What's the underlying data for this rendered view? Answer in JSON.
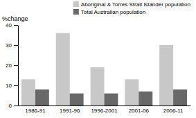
{
  "chart_data": {
    "type": "bar",
    "ylabel": "%change",
    "categories": [
      "1986-91",
      "1991-96",
      "1996-2001",
      "2001-06",
      "2006-11"
    ],
    "series": [
      {
        "name": "Aboriginal & Torres Strait Islander population",
        "color": "#c8c8c8",
        "values": [
          13,
          36,
          19,
          13,
          30
        ]
      },
      {
        "name": "Total Australian population",
        "color": "#686868",
        "values": [
          8,
          6,
          6,
          7,
          8
        ]
      }
    ],
    "ylim": [
      0,
      40
    ],
    "yticks": [
      0,
      10,
      20,
      30,
      40
    ],
    "grid": false,
    "legend": "upper right"
  }
}
